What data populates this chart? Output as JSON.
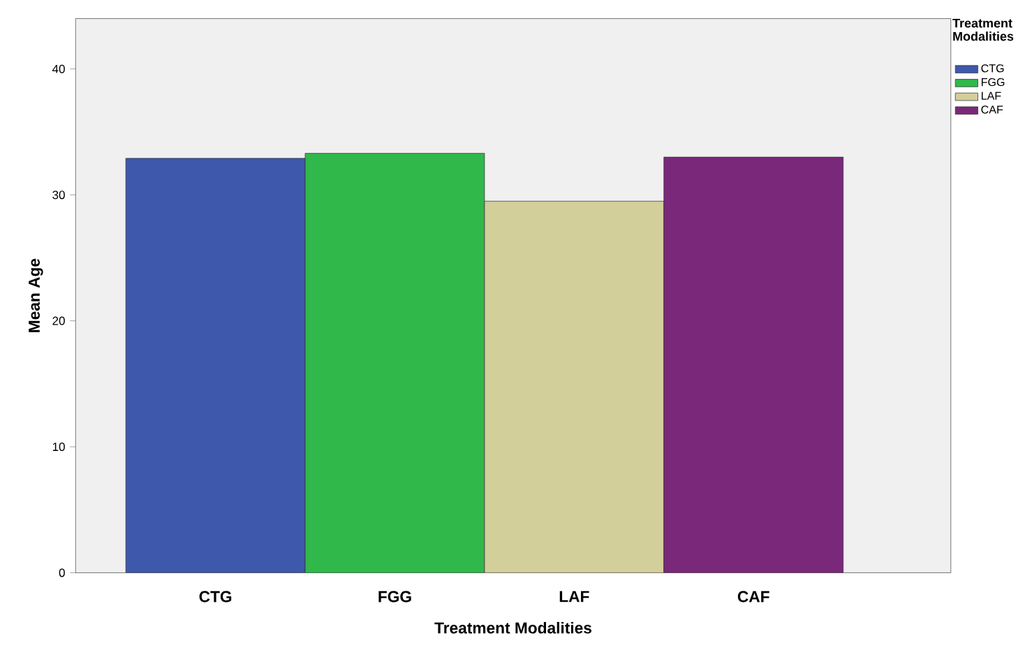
{
  "chart_data": {
    "type": "bar",
    "xlabel": "Treatment Modalities",
    "ylabel": "Mean Age",
    "legend_title": "Treatment Modalities",
    "categories": [
      "CTG",
      "FGG",
      "LAF",
      "CAF"
    ],
    "series": [
      {
        "name": "CTG",
        "color": "#3e58ab",
        "values": [
          32.9,
          null,
          null,
          null
        ]
      },
      {
        "name": "FGG",
        "color": "#30b84a",
        "values": [
          null,
          33.3,
          null,
          null
        ]
      },
      {
        "name": "LAF",
        "color": "#d3cf9a",
        "values": [
          null,
          null,
          29.5,
          null
        ]
      },
      {
        "name": "CAF",
        "color": "#7a287a",
        "values": [
          null,
          null,
          null,
          33.0
        ]
      }
    ],
    "ylim": [
      0,
      44
    ],
    "yticks": [
      0,
      10,
      20,
      30,
      40
    ],
    "legend": "top right",
    "grid": false
  }
}
